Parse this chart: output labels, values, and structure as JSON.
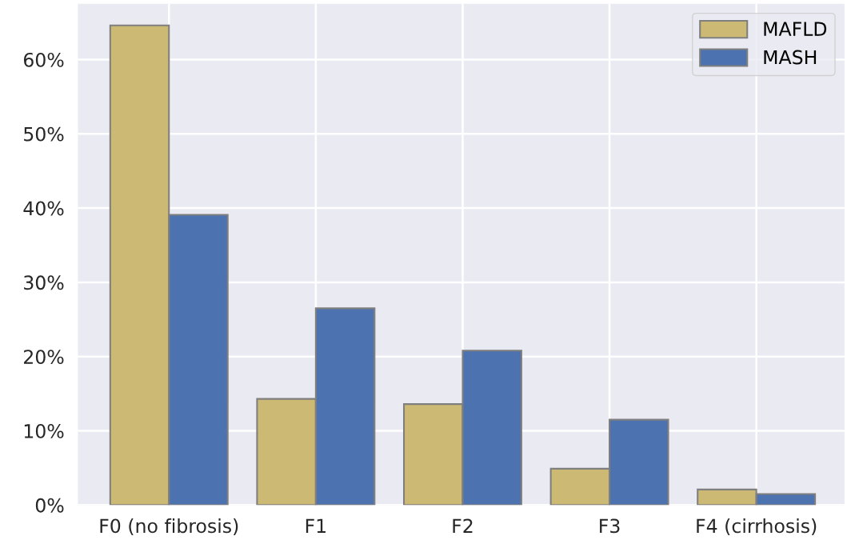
{
  "chart_data": {
    "type": "bar",
    "categories": [
      "F0 (no fibrosis)",
      "F1",
      "F2",
      "F3",
      "F4 (cirrhosis)"
    ],
    "series": [
      {
        "name": "MAFLD",
        "color": "#ccb974",
        "values": [
          64.6,
          14.3,
          13.6,
          4.9,
          2.1
        ]
      },
      {
        "name": "MASH",
        "color": "#4c72b0",
        "values": [
          39.1,
          26.5,
          20.8,
          11.5,
          1.5
        ]
      }
    ],
    "ylim": [
      0,
      67.5
    ],
    "yticks": [
      {
        "value": 0,
        "label": "0%"
      },
      {
        "value": 10,
        "label": "10%"
      },
      {
        "value": 20,
        "label": "20%"
      },
      {
        "value": 30,
        "label": "30%"
      },
      {
        "value": 40,
        "label": "40%"
      },
      {
        "value": 50,
        "label": "50%"
      },
      {
        "value": 60,
        "label": "60%"
      }
    ],
    "grid": true,
    "legend": "top right"
  }
}
